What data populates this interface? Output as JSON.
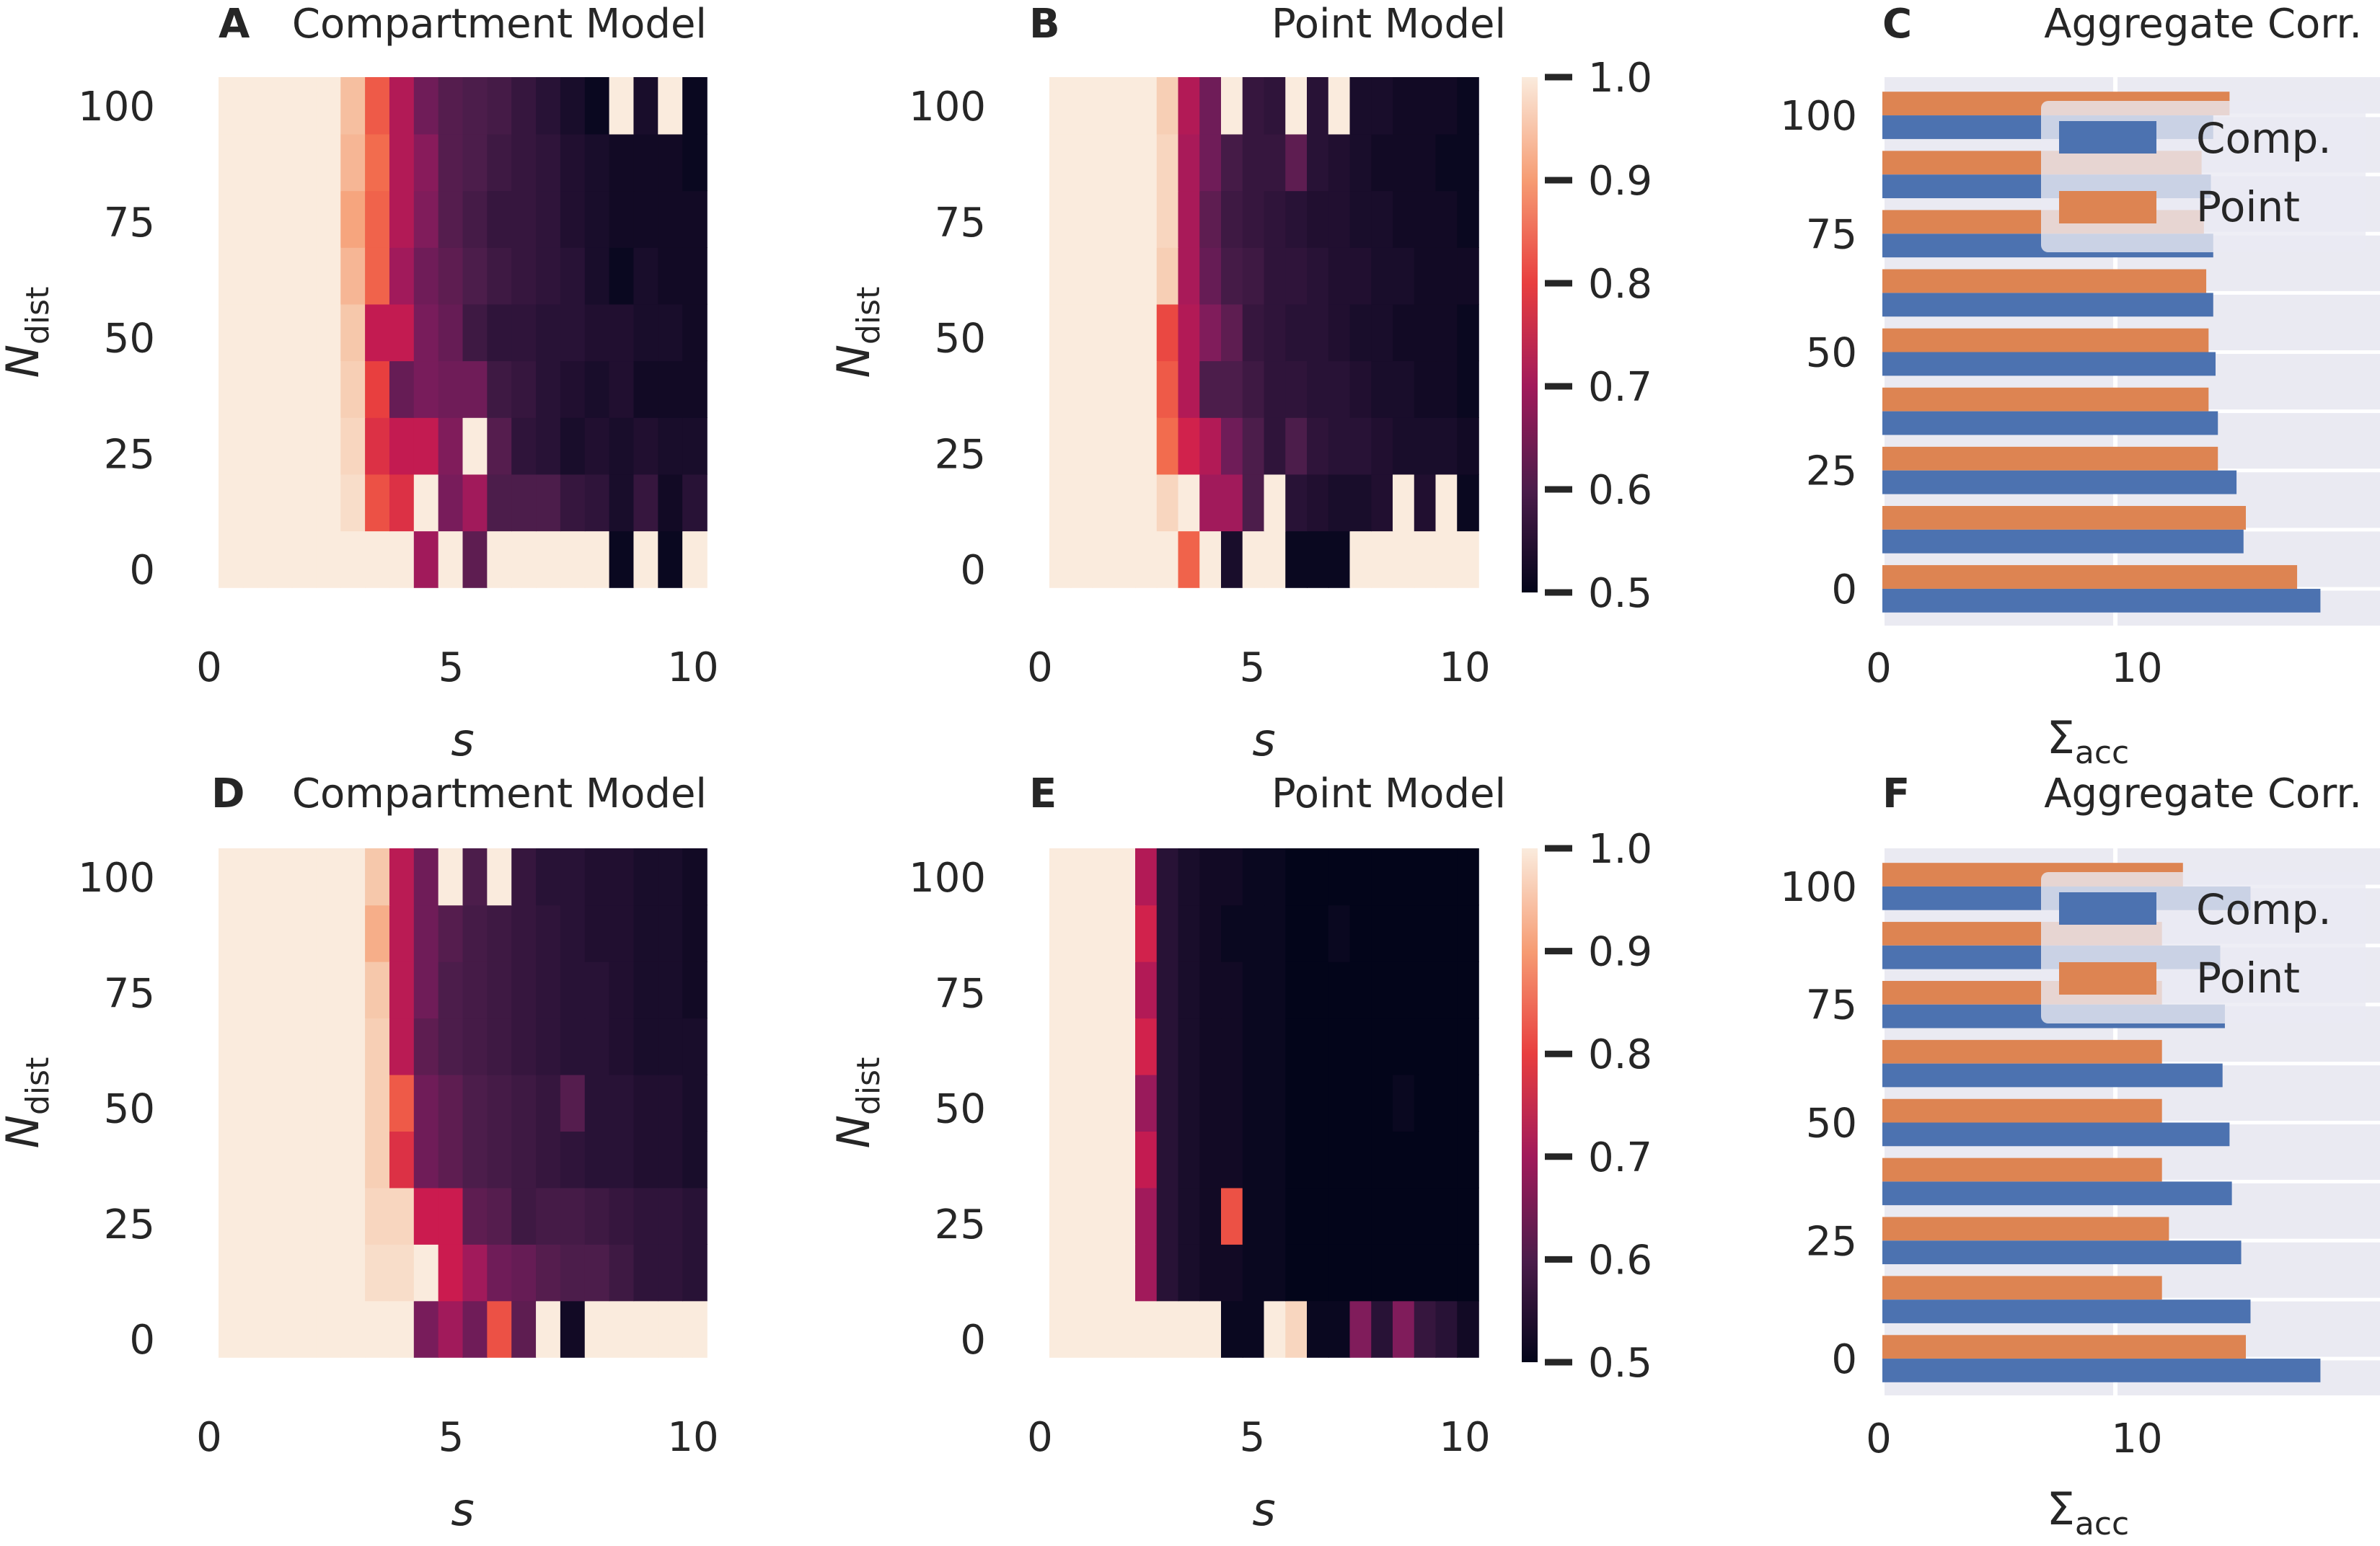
{
  "figure": {
    "heat_x_ticks": [
      "0",
      "5",
      "10"
    ],
    "heat_y_ticks": [
      "0",
      "25",
      "50",
      "75",
      "100"
    ],
    "heat_xlabel": "s",
    "heat_ylabel_main": "N",
    "heat_ylabel_sub": "dist",
    "colorbar_ticks": [
      "0.5",
      "0.6",
      "0.7",
      "0.8",
      "0.9",
      "1.0"
    ],
    "bar_x_ticks": [
      "0",
      "10"
    ],
    "bar_y_ticks": [
      "0",
      "25",
      "50",
      "75",
      "100"
    ],
    "bar_xlabel_main": "Σ",
    "bar_xlabel_sub": "acc",
    "legend": [
      "Comp.",
      "Point"
    ],
    "colors": {
      "comp": "#4c72b0",
      "point": "#dd8452",
      "bar_bg": "#eaeaf2"
    }
  },
  "chart_data": [
    {
      "panel": "A",
      "type": "heatmap",
      "title": "Compartment Model",
      "xlabel": "s",
      "ylabel": "N_dist",
      "xlim": [
        0,
        10
      ],
      "ylim": [
        0,
        100
      ],
      "clim": [
        0.5,
        1.0
      ],
      "rows": [
        [
          1.0,
          1.0,
          1.0,
          1.0,
          1.0,
          1.0,
          1.0,
          1.0,
          0.7,
          1.0,
          0.62,
          1.0,
          1.0,
          1.0,
          1.0,
          1.0,
          0.51,
          1.0,
          0.51,
          1.0
        ],
        [
          1.0,
          1.0,
          1.0,
          1.0,
          1.0,
          0.98,
          0.82,
          0.78,
          1.0,
          0.65,
          0.7,
          0.6,
          0.6,
          0.6,
          0.57,
          0.56,
          0.53,
          0.57,
          0.52,
          0.55
        ],
        [
          1.0,
          1.0,
          1.0,
          1.0,
          1.0,
          0.97,
          0.78,
          0.74,
          0.74,
          0.66,
          1.0,
          0.61,
          0.56,
          0.55,
          0.53,
          0.54,
          0.53,
          0.54,
          0.53,
          0.53
        ],
        [
          1.0,
          1.0,
          1.0,
          1.0,
          1.0,
          0.96,
          0.8,
          0.63,
          0.65,
          0.64,
          0.64,
          0.58,
          0.57,
          0.55,
          0.54,
          0.53,
          0.54,
          0.52,
          0.52,
          0.52
        ],
        [
          1.0,
          1.0,
          1.0,
          1.0,
          1.0,
          0.95,
          0.74,
          0.74,
          0.65,
          0.63,
          0.58,
          0.56,
          0.56,
          0.55,
          0.55,
          0.54,
          0.54,
          0.53,
          0.53,
          0.52
        ],
        [
          1.0,
          1.0,
          1.0,
          1.0,
          1.0,
          0.93,
          0.84,
          0.7,
          0.64,
          0.62,
          0.6,
          0.58,
          0.57,
          0.56,
          0.55,
          0.53,
          0.51,
          0.53,
          0.52,
          0.52
        ],
        [
          1.0,
          1.0,
          1.0,
          1.0,
          1.0,
          0.91,
          0.84,
          0.72,
          0.66,
          0.61,
          0.59,
          0.57,
          0.57,
          0.56,
          0.54,
          0.53,
          0.52,
          0.52,
          0.52,
          0.52
        ],
        [
          1.0,
          1.0,
          1.0,
          1.0,
          1.0,
          0.93,
          0.85,
          0.72,
          0.67,
          0.61,
          0.6,
          0.58,
          0.57,
          0.56,
          0.54,
          0.53,
          0.52,
          0.52,
          0.52,
          0.51
        ],
        [
          1.0,
          1.0,
          1.0,
          1.0,
          1.0,
          0.94,
          0.83,
          0.72,
          0.64,
          0.61,
          0.6,
          0.59,
          0.57,
          0.55,
          0.53,
          0.51,
          1.0,
          0.53,
          1.0,
          0.51
        ]
      ]
    },
    {
      "panel": "B",
      "type": "heatmap",
      "title": "Point Model",
      "xlabel": "s",
      "ylabel": "N_dist",
      "xlim": [
        0,
        10
      ],
      "ylim": [
        0,
        100
      ],
      "clim": [
        0.5,
        1.0
      ],
      "rows": [
        [
          1.0,
          1.0,
          1.0,
          1.0,
          1.0,
          1.0,
          0.84,
          1.0,
          0.53,
          1.0,
          1.0,
          0.51,
          0.51,
          0.51,
          1.0,
          1.0,
          1.0,
          1.0,
          1.0,
          1.0
        ],
        [
          1.0,
          1.0,
          1.0,
          1.0,
          1.0,
          0.97,
          1.0,
          0.7,
          0.7,
          0.6,
          1.0,
          0.55,
          0.54,
          0.53,
          0.53,
          0.54,
          1.0,
          0.54,
          1.0,
          0.51
        ],
        [
          1.0,
          1.0,
          1.0,
          1.0,
          1.0,
          0.85,
          0.76,
          0.72,
          0.64,
          0.6,
          0.56,
          0.6,
          0.56,
          0.55,
          0.55,
          0.54,
          0.53,
          0.53,
          0.53,
          0.52
        ],
        [
          1.0,
          1.0,
          1.0,
          1.0,
          1.0,
          0.83,
          0.72,
          0.6,
          0.6,
          0.58,
          0.56,
          0.56,
          0.55,
          0.55,
          0.54,
          0.53,
          0.53,
          0.52,
          0.52,
          0.51
        ],
        [
          1.0,
          1.0,
          1.0,
          1.0,
          1.0,
          0.81,
          0.72,
          0.66,
          0.62,
          0.57,
          0.56,
          0.55,
          0.55,
          0.54,
          0.53,
          0.53,
          0.52,
          0.52,
          0.52,
          0.51
        ],
        [
          1.0,
          1.0,
          1.0,
          1.0,
          1.0,
          0.96,
          0.71,
          0.63,
          0.59,
          0.58,
          0.56,
          0.56,
          0.55,
          0.54,
          0.54,
          0.53,
          0.53,
          0.52,
          0.52,
          0.52
        ],
        [
          1.0,
          1.0,
          1.0,
          1.0,
          1.0,
          0.97,
          0.71,
          0.62,
          0.58,
          0.57,
          0.56,
          0.55,
          0.54,
          0.54,
          0.53,
          0.53,
          0.52,
          0.52,
          0.52,
          0.51
        ],
        [
          1.0,
          1.0,
          1.0,
          1.0,
          1.0,
          0.97,
          0.71,
          0.64,
          0.59,
          0.57,
          0.57,
          0.62,
          0.55,
          0.54,
          0.53,
          0.52,
          0.52,
          0.52,
          0.51,
          0.51
        ],
        [
          1.0,
          1.0,
          1.0,
          1.0,
          1.0,
          0.96,
          0.72,
          0.64,
          1.0,
          0.57,
          0.56,
          1.0,
          0.55,
          1.0,
          0.53,
          0.53,
          0.52,
          0.52,
          0.52,
          0.51
        ]
      ]
    },
    {
      "panel": "C",
      "type": "bar",
      "orientation": "horizontal",
      "title": "Aggregate Corr.",
      "xlabel": "Σacc",
      "ylabel": "",
      "xlim": [
        0,
        19.5
      ],
      "y_tick_values": [
        0,
        25,
        50,
        75,
        100
      ],
      "categories": [
        0,
        12.5,
        25,
        37.5,
        50,
        62.5,
        75,
        87.5,
        100
      ],
      "series": [
        {
          "name": "Comp.",
          "values": [
            18.8,
            15.5,
            15.2,
            14.4,
            14.3,
            14.2,
            14.2,
            14.1,
            14.2
          ]
        },
        {
          "name": "Point",
          "values": [
            17.8,
            15.6,
            14.4,
            14.0,
            14.0,
            13.9,
            13.8,
            13.7,
            14.9
          ]
        }
      ],
      "legend_position": "top-right"
    },
    {
      "panel": "D",
      "type": "heatmap",
      "title": "Compartment Model",
      "xlabel": "s",
      "ylabel": "N_dist",
      "xlim": [
        0,
        10
      ],
      "ylim": [
        0,
        100
      ],
      "clim": [
        0.5,
        1.0
      ],
      "rows": [
        [
          1.0,
          1.0,
          1.0,
          1.0,
          1.0,
          1.0,
          1.0,
          1.0,
          0.65,
          0.7,
          0.64,
          0.82,
          0.62,
          1.0,
          0.52,
          1.0,
          1.0,
          1.0,
          1.0,
          1.0
        ],
        [
          1.0,
          1.0,
          1.0,
          1.0,
          1.0,
          1.0,
          0.98,
          0.98,
          1.0,
          0.75,
          0.7,
          0.64,
          0.63,
          0.61,
          0.6,
          0.6,
          0.58,
          0.56,
          0.56,
          0.55
        ],
        [
          1.0,
          1.0,
          1.0,
          1.0,
          1.0,
          1.0,
          0.97,
          0.97,
          0.75,
          0.75,
          0.62,
          0.61,
          0.58,
          0.59,
          0.59,
          0.58,
          0.57,
          0.56,
          0.56,
          0.55
        ],
        [
          1.0,
          1.0,
          1.0,
          1.0,
          1.0,
          1.0,
          0.96,
          0.78,
          0.64,
          0.62,
          0.6,
          0.59,
          0.58,
          0.57,
          0.56,
          0.55,
          0.55,
          0.54,
          0.54,
          0.53
        ],
        [
          1.0,
          1.0,
          1.0,
          1.0,
          1.0,
          1.0,
          0.96,
          0.83,
          0.64,
          0.62,
          0.6,
          0.59,
          0.58,
          0.57,
          0.61,
          0.55,
          0.55,
          0.54,
          0.54,
          0.53
        ],
        [
          1.0,
          1.0,
          1.0,
          1.0,
          1.0,
          1.0,
          0.96,
          0.73,
          0.62,
          0.6,
          0.59,
          0.58,
          0.57,
          0.56,
          0.55,
          0.55,
          0.54,
          0.53,
          0.53,
          0.53
        ],
        [
          1.0,
          1.0,
          1.0,
          1.0,
          1.0,
          1.0,
          0.95,
          0.73,
          0.64,
          0.6,
          0.59,
          0.58,
          0.57,
          0.56,
          0.55,
          0.55,
          0.54,
          0.53,
          0.53,
          0.52
        ],
        [
          1.0,
          1.0,
          1.0,
          1.0,
          1.0,
          1.0,
          0.92,
          0.73,
          0.64,
          0.61,
          0.59,
          0.58,
          0.57,
          0.56,
          0.55,
          0.54,
          0.54,
          0.53,
          0.53,
          0.52
        ],
        [
          1.0,
          1.0,
          1.0,
          1.0,
          1.0,
          1.0,
          0.95,
          0.73,
          0.64,
          1.0,
          0.6,
          1.0,
          0.57,
          0.55,
          0.55,
          0.54,
          0.54,
          0.53,
          0.53,
          0.52
        ]
      ]
    },
    {
      "panel": "E",
      "type": "heatmap",
      "title": "Point Model",
      "xlabel": "s",
      "ylabel": "N_dist",
      "xlim": [
        0,
        10
      ],
      "ylim": [
        0,
        100
      ],
      "clim": [
        0.5,
        1.0
      ],
      "rows": [
        [
          1.0,
          1.0,
          1.0,
          1.0,
          1.0,
          1.0,
          1.0,
          1.0,
          0.51,
          0.51,
          1.0,
          0.97,
          0.51,
          0.51,
          0.66,
          0.55,
          0.66,
          0.57,
          0.55,
          0.52
        ],
        [
          1.0,
          1.0,
          1.0,
          1.0,
          0.7,
          0.55,
          0.53,
          0.52,
          0.52,
          0.51,
          0.51,
          0.5,
          0.5,
          0.5,
          0.5,
          0.5,
          0.5,
          0.5,
          0.5,
          0.5
        ],
        [
          1.0,
          1.0,
          1.0,
          1.0,
          0.7,
          0.55,
          0.53,
          0.52,
          0.82,
          0.51,
          0.51,
          0.5,
          0.5,
          0.5,
          0.5,
          0.5,
          0.5,
          0.5,
          0.5,
          0.5
        ],
        [
          1.0,
          1.0,
          1.0,
          1.0,
          0.74,
          0.55,
          0.53,
          0.52,
          0.52,
          0.51,
          0.51,
          0.5,
          0.5,
          0.5,
          0.5,
          0.5,
          0.5,
          0.5,
          0.5,
          0.5
        ],
        [
          1.0,
          1.0,
          1.0,
          1.0,
          0.69,
          0.55,
          0.53,
          0.52,
          0.52,
          0.51,
          0.51,
          0.5,
          0.5,
          0.5,
          0.5,
          0.5,
          0.51,
          0.5,
          0.5,
          0.5
        ],
        [
          1.0,
          1.0,
          1.0,
          1.0,
          0.76,
          0.55,
          0.53,
          0.52,
          0.52,
          0.51,
          0.51,
          0.5,
          0.5,
          0.5,
          0.5,
          0.5,
          0.5,
          0.5,
          0.5,
          0.5
        ],
        [
          1.0,
          1.0,
          1.0,
          1.0,
          0.72,
          0.55,
          0.53,
          0.52,
          0.52,
          0.51,
          0.51,
          0.5,
          0.5,
          0.5,
          0.5,
          0.5,
          0.5,
          0.5,
          0.5,
          0.5
        ],
        [
          1.0,
          1.0,
          1.0,
          1.0,
          0.76,
          0.55,
          0.53,
          0.52,
          0.51,
          0.51,
          0.51,
          0.5,
          0.5,
          0.51,
          0.5,
          0.5,
          0.5,
          0.5,
          0.5,
          0.5
        ],
        [
          1.0,
          1.0,
          1.0,
          1.0,
          0.72,
          0.55,
          0.53,
          0.52,
          0.52,
          0.51,
          0.51,
          0.5,
          0.5,
          0.5,
          0.5,
          0.5,
          0.5,
          0.5,
          0.5,
          0.5
        ]
      ]
    },
    {
      "panel": "F",
      "type": "bar",
      "orientation": "horizontal",
      "title": "Aggregate Corr.",
      "xlabel": "Σacc",
      "ylabel": "",
      "xlim": [
        0,
        19.5
      ],
      "y_tick_values": [
        0,
        25,
        50,
        75,
        100
      ],
      "categories": [
        0,
        12.5,
        25,
        37.5,
        50,
        62.5,
        75,
        87.5,
        100
      ],
      "series": [
        {
          "name": "Comp.",
          "values": [
            18.8,
            15.8,
            15.4,
            15.0,
            14.9,
            14.6,
            14.7,
            14.5,
            15.8
          ]
        },
        {
          "name": "Point",
          "values": [
            15.6,
            12.0,
            12.3,
            12.0,
            12.0,
            12.0,
            12.0,
            12.0,
            12.9
          ]
        }
      ],
      "legend_position": "top-right"
    }
  ]
}
